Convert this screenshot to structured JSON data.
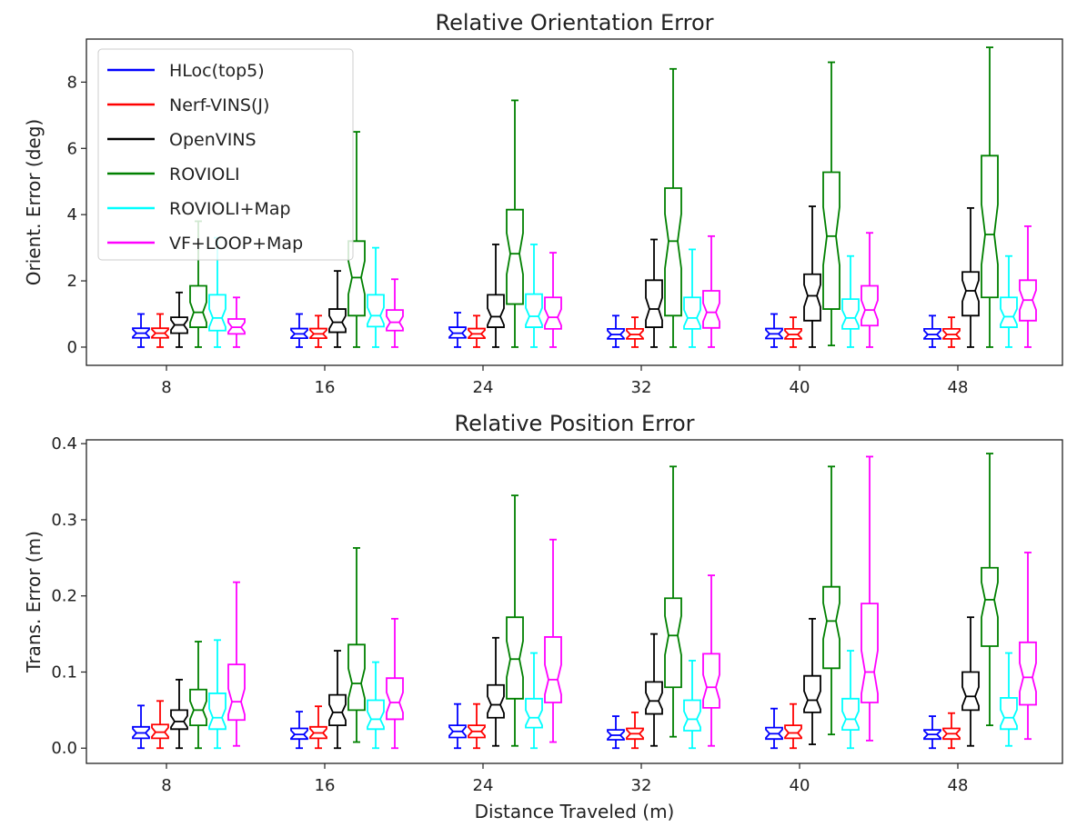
{
  "chart_data": [
    {
      "type": "box",
      "title": "Relative Orientation Error",
      "xlabel": "",
      "ylabel": "Orient. Error (deg)",
      "categories": [
        "8",
        "16",
        "24",
        "32",
        "40",
        "48"
      ],
      "ylim": [
        -0.55,
        9.3
      ],
      "yticks": [
        0,
        2,
        4,
        6,
        8
      ],
      "ytick_labels": [
        "0",
        "2",
        "4",
        "6",
        "8"
      ],
      "notched": true,
      "legend": "upper-left",
      "series": [
        {
          "name": "HLoc(top5)",
          "color": "#0000ff",
          "boxes": [
            {
              "min": 0,
              "q1": 0.28,
              "med": 0.42,
              "q3": 0.57,
              "max": 1.0
            },
            {
              "min": 0,
              "q1": 0.27,
              "med": 0.4,
              "q3": 0.56,
              "max": 1.0
            },
            {
              "min": 0,
              "q1": 0.28,
              "med": 0.42,
              "q3": 0.6,
              "max": 1.04
            },
            {
              "min": 0,
              "q1": 0.25,
              "med": 0.38,
              "q3": 0.55,
              "max": 0.95
            },
            {
              "min": 0,
              "q1": 0.26,
              "med": 0.4,
              "q3": 0.56,
              "max": 1.0
            },
            {
              "min": 0,
              "q1": 0.25,
              "med": 0.38,
              "q3": 0.55,
              "max": 0.95
            }
          ]
        },
        {
          "name": "Nerf-VINS(J)",
          "color": "#ff0000",
          "boxes": [
            {
              "min": 0,
              "q1": 0.28,
              "med": 0.42,
              "q3": 0.57,
              "max": 1.0
            },
            {
              "min": 0,
              "q1": 0.27,
              "med": 0.4,
              "q3": 0.56,
              "max": 0.95
            },
            {
              "min": 0,
              "q1": 0.27,
              "med": 0.4,
              "q3": 0.56,
              "max": 0.95
            },
            {
              "min": 0,
              "q1": 0.25,
              "med": 0.38,
              "q3": 0.55,
              "max": 0.9
            },
            {
              "min": 0,
              "q1": 0.25,
              "med": 0.38,
              "q3": 0.55,
              "max": 0.9
            },
            {
              "min": 0,
              "q1": 0.25,
              "med": 0.38,
              "q3": 0.55,
              "max": 0.9
            }
          ]
        },
        {
          "name": "OpenVINS",
          "color": "#000000",
          "boxes": [
            {
              "min": 0,
              "q1": 0.42,
              "med": 0.67,
              "q3": 0.9,
              "max": 1.65
            },
            {
              "min": 0,
              "q1": 0.45,
              "med": 0.75,
              "q3": 1.15,
              "max": 2.3
            },
            {
              "min": 0,
              "q1": 0.6,
              "med": 0.92,
              "q3": 1.58,
              "max": 3.1
            },
            {
              "min": 0,
              "q1": 0.6,
              "med": 1.15,
              "q3": 2.02,
              "max": 3.25
            },
            {
              "min": 0,
              "q1": 0.8,
              "med": 1.55,
              "q3": 2.2,
              "max": 4.25
            },
            {
              "min": 0,
              "q1": 0.95,
              "med": 1.7,
              "q3": 2.27,
              "max": 4.2
            }
          ]
        },
        {
          "name": "ROVIOLI",
          "color": "#008000",
          "boxes": [
            {
              "min": 0,
              "q1": 0.6,
              "med": 1.05,
              "q3": 1.85,
              "max": 3.8
            },
            {
              "min": 0,
              "q1": 0.95,
              "med": 2.1,
              "q3": 3.2,
              "max": 6.5
            },
            {
              "min": 0,
              "q1": 1.3,
              "med": 2.82,
              "q3": 4.15,
              "max": 7.45
            },
            {
              "min": 0,
              "q1": 0.95,
              "med": 3.2,
              "q3": 4.8,
              "max": 8.4
            },
            {
              "min": 0.05,
              "q1": 1.15,
              "med": 3.35,
              "q3": 5.28,
              "max": 8.6
            },
            {
              "min": 0,
              "q1": 1.5,
              "med": 3.4,
              "q3": 5.78,
              "max": 9.05
            }
          ]
        },
        {
          "name": "ROVIOLI+Map",
          "color": "#00ffff",
          "boxes": [
            {
              "min": 0,
              "q1": 0.5,
              "med": 0.88,
              "q3": 1.58,
              "max": 3.3
            },
            {
              "min": 0,
              "q1": 0.62,
              "med": 0.95,
              "q3": 1.58,
              "max": 3.0
            },
            {
              "min": 0,
              "q1": 0.6,
              "med": 0.93,
              "q3": 1.6,
              "max": 3.1
            },
            {
              "min": 0,
              "q1": 0.55,
              "med": 0.88,
              "q3": 1.5,
              "max": 2.95
            },
            {
              "min": 0,
              "q1": 0.55,
              "med": 0.88,
              "q3": 1.45,
              "max": 2.75
            },
            {
              "min": 0,
              "q1": 0.6,
              "med": 0.92,
              "q3": 1.5,
              "max": 2.75
            }
          ]
        },
        {
          "name": "VF+LOOP+Map",
          "color": "#ff00ff",
          "boxes": [
            {
              "min": 0,
              "q1": 0.4,
              "med": 0.6,
              "q3": 0.85,
              "max": 1.5
            },
            {
              "min": 0,
              "q1": 0.5,
              "med": 0.75,
              "q3": 1.12,
              "max": 2.05
            },
            {
              "min": 0,
              "q1": 0.55,
              "med": 0.9,
              "q3": 1.5,
              "max": 2.85
            },
            {
              "min": 0,
              "q1": 0.58,
              "med": 1.05,
              "q3": 1.7,
              "max": 3.35
            },
            {
              "min": 0,
              "q1": 0.65,
              "med": 1.12,
              "q3": 1.85,
              "max": 3.45
            },
            {
              "min": 0,
              "q1": 0.8,
              "med": 1.42,
              "q3": 2.02,
              "max": 3.65
            }
          ]
        }
      ]
    },
    {
      "type": "box",
      "title": "Relative Position Error",
      "xlabel": "Distance Traveled (m)",
      "ylabel": "Trans. Error (m)",
      "categories": [
        "8",
        "16",
        "24",
        "32",
        "40",
        "48"
      ],
      "ylim": [
        -0.02,
        0.405
      ],
      "yticks": [
        0,
        0.1,
        0.2,
        0.3,
        0.4
      ],
      "ytick_labels": [
        "0.0",
        "0.1",
        "0.2",
        "0.3",
        "0.4"
      ],
      "notched": true,
      "series": [
        {
          "name": "HLoc(top5)",
          "color": "#0000ff",
          "boxes": [
            {
              "min": 0,
              "q1": 0.013,
              "med": 0.02,
              "q3": 0.028,
              "max": 0.056
            },
            {
              "min": 0,
              "q1": 0.012,
              "med": 0.018,
              "q3": 0.026,
              "max": 0.048
            },
            {
              "min": 0,
              "q1": 0.014,
              "med": 0.022,
              "q3": 0.03,
              "max": 0.058
            },
            {
              "min": 0,
              "q1": 0.011,
              "med": 0.017,
              "q3": 0.024,
              "max": 0.042
            },
            {
              "min": 0,
              "q1": 0.012,
              "med": 0.019,
              "q3": 0.027,
              "max": 0.052
            },
            {
              "min": 0,
              "q1": 0.012,
              "med": 0.018,
              "q3": 0.024,
              "max": 0.042
            }
          ]
        },
        {
          "name": "Nerf-VINS(J)",
          "color": "#ff0000",
          "boxes": [
            {
              "min": 0,
              "q1": 0.013,
              "med": 0.021,
              "q3": 0.031,
              "max": 0.062
            },
            {
              "min": 0,
              "q1": 0.013,
              "med": 0.02,
              "q3": 0.028,
              "max": 0.055
            },
            {
              "min": 0,
              "q1": 0.014,
              "med": 0.022,
              "q3": 0.03,
              "max": 0.058
            },
            {
              "min": 0,
              "q1": 0.012,
              "med": 0.019,
              "q3": 0.026,
              "max": 0.047
            },
            {
              "min": 0,
              "q1": 0.013,
              "med": 0.02,
              "q3": 0.03,
              "max": 0.058
            },
            {
              "min": 0,
              "q1": 0.012,
              "med": 0.019,
              "q3": 0.026,
              "max": 0.046
            }
          ]
        },
        {
          "name": "OpenVINS",
          "color": "#000000",
          "boxes": [
            {
              "min": 0,
              "q1": 0.025,
              "med": 0.035,
              "q3": 0.05,
              "max": 0.09
            },
            {
              "min": 0,
              "q1": 0.03,
              "med": 0.047,
              "q3": 0.07,
              "max": 0.128
            },
            {
              "min": 0.003,
              "q1": 0.04,
              "med": 0.057,
              "q3": 0.083,
              "max": 0.145
            },
            {
              "min": 0.003,
              "q1": 0.045,
              "med": 0.062,
              "q3": 0.087,
              "max": 0.15
            },
            {
              "min": 0.005,
              "q1": 0.047,
              "med": 0.063,
              "q3": 0.095,
              "max": 0.17
            },
            {
              "min": 0.003,
              "q1": 0.05,
              "med": 0.068,
              "q3": 0.1,
              "max": 0.172
            }
          ]
        },
        {
          "name": "ROVIOLI",
          "color": "#008000",
          "boxes": [
            {
              "min": 0,
              "q1": 0.03,
              "med": 0.05,
              "q3": 0.077,
              "max": 0.14
            },
            {
              "min": 0.008,
              "q1": 0.05,
              "med": 0.085,
              "q3": 0.136,
              "max": 0.263
            },
            {
              "min": 0.003,
              "q1": 0.065,
              "med": 0.117,
              "q3": 0.172,
              "max": 0.332
            },
            {
              "min": 0.015,
              "q1": 0.08,
              "med": 0.148,
              "q3": 0.197,
              "max": 0.37
            },
            {
              "min": 0.018,
              "q1": 0.105,
              "med": 0.167,
              "q3": 0.212,
              "max": 0.37
            },
            {
              "min": 0.03,
              "q1": 0.134,
              "med": 0.195,
              "q3": 0.237,
              "max": 0.387
            }
          ]
        },
        {
          "name": "ROVIOLI+Map",
          "color": "#00ffff",
          "boxes": [
            {
              "min": 0,
              "q1": 0.025,
              "med": 0.04,
              "q3": 0.072,
              "max": 0.142
            },
            {
              "min": 0,
              "q1": 0.025,
              "med": 0.038,
              "q3": 0.063,
              "max": 0.113
            },
            {
              "min": 0,
              "q1": 0.027,
              "med": 0.04,
              "q3": 0.065,
              "max": 0.125
            },
            {
              "min": 0,
              "q1": 0.023,
              "med": 0.038,
              "q3": 0.063,
              "max": 0.115
            },
            {
              "min": 0,
              "q1": 0.024,
              "med": 0.038,
              "q3": 0.065,
              "max": 0.128
            },
            {
              "min": 0.003,
              "q1": 0.025,
              "med": 0.04,
              "q3": 0.066,
              "max": 0.125
            }
          ]
        },
        {
          "name": "VF+LOOP+Map",
          "color": "#ff00ff",
          "boxes": [
            {
              "min": 0.003,
              "q1": 0.037,
              "med": 0.061,
              "q3": 0.11,
              "max": 0.218
            },
            {
              "min": 0,
              "q1": 0.038,
              "med": 0.06,
              "q3": 0.092,
              "max": 0.17
            },
            {
              "min": 0.008,
              "q1": 0.06,
              "med": 0.09,
              "q3": 0.146,
              "max": 0.274
            },
            {
              "min": 0.003,
              "q1": 0.053,
              "med": 0.08,
              "q3": 0.124,
              "max": 0.227
            },
            {
              "min": 0.01,
              "q1": 0.06,
              "med": 0.1,
              "q3": 0.19,
              "max": 0.383
            },
            {
              "min": 0.012,
              "q1": 0.057,
              "med": 0.093,
              "q3": 0.139,
              "max": 0.257
            }
          ]
        }
      ]
    }
  ]
}
